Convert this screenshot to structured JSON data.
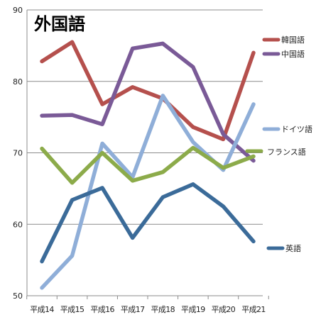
{
  "chart_data": {
    "type": "line",
    "title": "外国語",
    "xlabel": "",
    "ylabel": "",
    "categories": [
      "平成14",
      "平成15",
      "平成16",
      "平成17",
      "平成18",
      "平成19",
      "平成20",
      "平成21"
    ],
    "ylim": [
      50,
      90
    ],
    "yticks": [
      50,
      60,
      70,
      80,
      90
    ],
    "grid": true,
    "legend": "right",
    "series": [
      {
        "name": "韓国語",
        "color": "#b5504d",
        "x": [
          0,
          1,
          2,
          3,
          4,
          5,
          6,
          7
        ],
        "values": [
          82.8,
          85.5,
          76.8,
          79.2,
          77.6,
          73.6,
          71.9,
          84.0
        ]
      },
      {
        "name": "中国語",
        "color": "#7a5a97",
        "x": [
          0,
          1,
          2,
          3,
          4,
          5,
          6,
          7
        ],
        "values": [
          75.2,
          75.3,
          74.0,
          84.6,
          85.3,
          82.0,
          72.6,
          68.9
        ]
      },
      {
        "name": "ドイツ語",
        "color": "#8faed8",
        "x": [
          0,
          1,
          2,
          3,
          4,
          5,
          6,
          7
        ],
        "values": [
          51.1,
          55.6,
          71.3,
          66.6,
          78.0,
          71.5,
          67.6,
          76.8
        ]
      },
      {
        "name": "フランス語",
        "color": "#8cab4a",
        "x": [
          0,
          1,
          2,
          3,
          4,
          5,
          6,
          7
        ],
        "values": [
          70.6,
          65.8,
          70.0,
          66.1,
          67.3,
          70.7,
          67.9,
          69.5
        ]
      },
      {
        "name": "英語",
        "color": "#3b6b99",
        "x": [
          0,
          1,
          2,
          3,
          4,
          5,
          6,
          7
        ],
        "values": [
          54.8,
          63.4,
          65.1,
          58.1,
          63.8,
          65.6,
          62.5,
          57.6
        ]
      }
    ]
  }
}
